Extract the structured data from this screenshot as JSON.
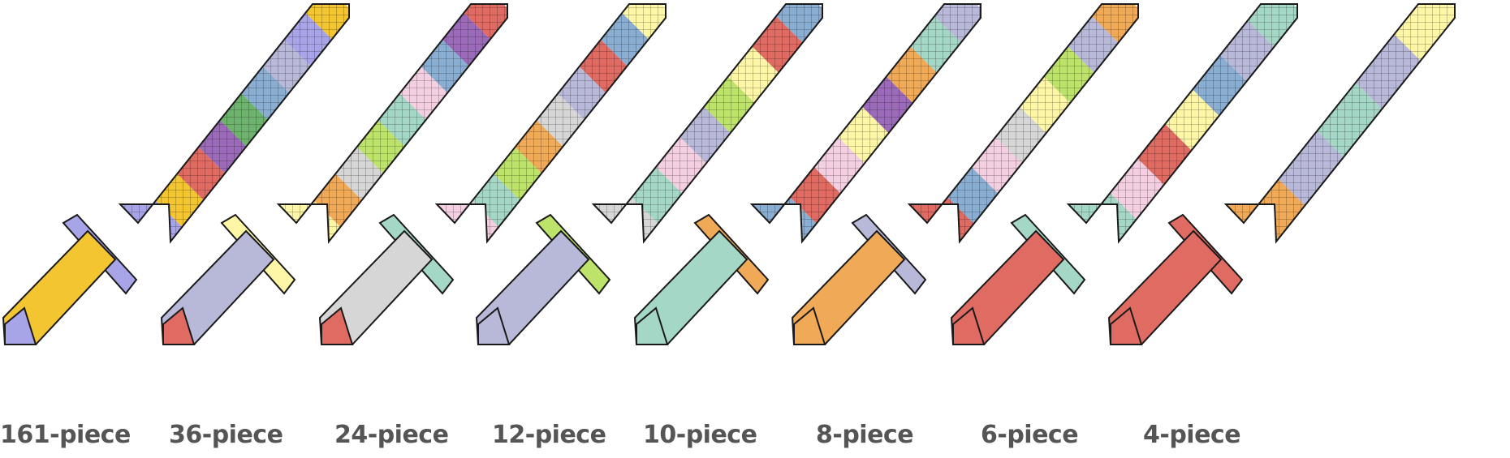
{
  "palette": {
    "red": "#e06b62",
    "orange": "#f0a956",
    "yellow": "#fdf6a7",
    "lime": "#bde36a",
    "mint": "#a5d7c6",
    "blue": "#8aaed2",
    "pink": "#f4cfe2",
    "lavender": "#b8b8d9",
    "gray": "#d6d6d6",
    "purple": "#9b6ab8",
    "green": "#6db36d",
    "gold": "#f2c531",
    "violet": "#a8a4e8",
    "outline": "#1a1a1a",
    "label": "#555555"
  },
  "swords": [
    {
      "label": "161-piece",
      "pieces": 161
    },
    {
      "label": "36-piece",
      "pieces": 36
    },
    {
      "label": "24-piece",
      "pieces": 24
    },
    {
      "label": "12-piece",
      "pieces": 12
    },
    {
      "label": "10-piece",
      "pieces": 10
    },
    {
      "label": "8-piece",
      "pieces": 8
    },
    {
      "label": "6-piece",
      "pieces": 6
    },
    {
      "label": "4-piece",
      "pieces": 4
    }
  ]
}
